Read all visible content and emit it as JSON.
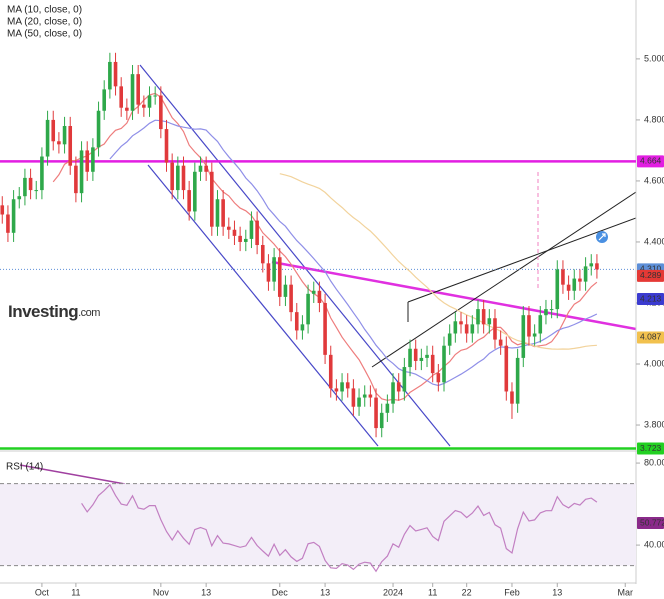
{
  "chart_data": {
    "type": "candlestick",
    "legend": [
      "MA (10, close, 0)",
      "MA (20, close, 0)",
      "MA (50, close, 0)"
    ],
    "ma": [
      {
        "period": 10,
        "color": "#ee7d7d"
      },
      {
        "period": 20,
        "color": "#8f8fe8"
      },
      {
        "period": 50,
        "color": "#f2d39c"
      }
    ],
    "logo": "Investing",
    "logo_suffix": ".com",
    "up_color": "#2ea84a",
    "down_color": "#e0393b",
    "candles": [
      [
        4.52,
        4.55,
        4.46,
        4.49
      ],
      [
        4.49,
        4.52,
        4.4,
        4.43
      ],
      [
        4.43,
        4.57,
        4.4,
        4.54
      ],
      [
        4.54,
        4.58,
        4.51,
        4.55
      ],
      [
        4.55,
        4.64,
        4.52,
        4.61
      ],
      [
        4.61,
        4.64,
        4.54,
        4.57
      ],
      [
        4.57,
        4.6,
        4.54,
        4.57
      ],
      [
        4.57,
        4.71,
        4.54,
        4.68
      ],
      [
        4.68,
        4.83,
        4.65,
        4.8
      ],
      [
        4.8,
        4.83,
        4.7,
        4.73
      ],
      [
        4.73,
        4.76,
        4.69,
        4.72
      ],
      [
        4.72,
        4.81,
        4.69,
        4.78
      ],
      [
        4.78,
        4.81,
        4.62,
        4.65
      ],
      [
        4.65,
        4.68,
        4.53,
        4.56
      ],
      [
        4.56,
        4.73,
        4.53,
        4.7
      ],
      [
        4.7,
        4.73,
        4.6,
        4.63
      ],
      [
        4.63,
        4.74,
        4.6,
        4.71
      ],
      [
        4.71,
        4.86,
        4.68,
        4.83
      ],
      [
        4.83,
        4.93,
        4.8,
        4.9
      ],
      [
        4.9,
        5.02,
        4.87,
        4.99
      ],
      [
        4.99,
        5.02,
        4.88,
        4.91
      ],
      [
        4.91,
        4.94,
        4.81,
        4.84
      ],
      [
        4.84,
        4.87,
        4.8,
        4.83
      ],
      [
        4.83,
        4.98,
        4.8,
        4.95
      ],
      [
        4.95,
        4.98,
        4.82,
        4.85
      ],
      [
        4.85,
        4.88,
        4.81,
        4.84
      ],
      [
        4.84,
        4.91,
        4.81,
        4.88
      ],
      [
        4.88,
        4.91,
        4.85,
        4.88
      ],
      [
        4.88,
        4.91,
        4.74,
        4.77
      ],
      [
        4.77,
        4.8,
        4.63,
        4.66
      ],
      [
        4.66,
        4.69,
        4.54,
        4.57
      ],
      [
        4.57,
        4.68,
        4.54,
        4.65
      ],
      [
        4.65,
        4.68,
        4.54,
        4.57
      ],
      [
        4.57,
        4.6,
        4.47,
        4.5
      ],
      [
        4.5,
        4.66,
        4.47,
        4.63
      ],
      [
        4.63,
        4.68,
        4.6,
        4.65
      ],
      [
        4.65,
        4.68,
        4.6,
        4.63
      ],
      [
        4.63,
        4.66,
        4.42,
        4.45
      ],
      [
        4.45,
        4.57,
        4.42,
        4.54
      ],
      [
        4.54,
        4.57,
        4.42,
        4.45
      ],
      [
        4.45,
        4.48,
        4.41,
        4.44
      ],
      [
        4.44,
        4.47,
        4.39,
        4.42
      ],
      [
        4.42,
        4.45,
        4.37,
        4.4
      ],
      [
        4.4,
        4.44,
        4.37,
        4.41
      ],
      [
        4.41,
        4.5,
        4.38,
        4.47
      ],
      [
        4.47,
        4.5,
        4.36,
        4.39
      ],
      [
        4.39,
        4.42,
        4.3,
        4.33
      ],
      [
        4.33,
        4.36,
        4.24,
        4.27
      ],
      [
        4.27,
        4.38,
        4.24,
        4.35
      ],
      [
        4.35,
        4.38,
        4.19,
        4.22
      ],
      [
        4.22,
        4.29,
        4.19,
        4.26
      ],
      [
        4.26,
        4.29,
        4.14,
        4.17
      ],
      [
        4.17,
        4.2,
        4.08,
        4.11
      ],
      [
        4.11,
        4.16,
        4.08,
        4.13
      ],
      [
        4.13,
        4.26,
        4.1,
        4.23
      ],
      [
        4.23,
        4.27,
        4.2,
        4.24
      ],
      [
        4.24,
        4.27,
        4.17,
        4.2
      ],
      [
        4.2,
        4.23,
        4.0,
        4.03
      ],
      [
        4.03,
        4.06,
        3.89,
        3.92
      ],
      [
        3.92,
        3.95,
        3.88,
        3.91
      ],
      [
        3.91,
        3.97,
        3.88,
        3.94
      ],
      [
        3.94,
        3.97,
        3.89,
        3.92
      ],
      [
        3.92,
        3.95,
        3.83,
        3.86
      ],
      [
        3.86,
        3.92,
        3.83,
        3.89
      ],
      [
        3.89,
        3.93,
        3.86,
        3.9
      ],
      [
        3.9,
        3.93,
        3.86,
        3.89
      ],
      [
        3.89,
        3.92,
        3.76,
        3.79
      ],
      [
        3.79,
        3.87,
        3.76,
        3.84
      ],
      [
        3.84,
        3.9,
        3.81,
        3.87
      ],
      [
        3.87,
        3.97,
        3.84,
        3.94
      ],
      [
        3.94,
        3.97,
        3.88,
        3.91
      ],
      [
        3.91,
        4.02,
        3.88,
        3.99
      ],
      [
        3.99,
        4.08,
        3.96,
        4.05
      ],
      [
        4.05,
        4.08,
        3.98,
        4.01
      ],
      [
        4.01,
        4.05,
        3.98,
        4.02
      ],
      [
        4.02,
        4.06,
        3.99,
        4.03
      ],
      [
        4.03,
        4.06,
        3.94,
        3.97
      ],
      [
        3.97,
        4.0,
        3.91,
        3.94
      ],
      [
        3.94,
        4.09,
        3.91,
        4.06
      ],
      [
        4.06,
        4.13,
        4.03,
        4.1
      ],
      [
        4.1,
        4.17,
        4.07,
        4.14
      ],
      [
        4.14,
        4.17,
        4.1,
        4.13
      ],
      [
        4.13,
        4.16,
        4.07,
        4.1
      ],
      [
        4.1,
        4.16,
        4.07,
        4.13
      ],
      [
        4.13,
        4.21,
        4.1,
        4.18
      ],
      [
        4.18,
        4.21,
        4.1,
        4.13
      ],
      [
        4.13,
        4.18,
        4.1,
        4.15
      ],
      [
        4.15,
        4.18,
        4.05,
        4.08
      ],
      [
        4.08,
        4.11,
        4.03,
        4.06
      ],
      [
        4.06,
        4.09,
        3.88,
        3.91
      ],
      [
        3.91,
        3.94,
        3.82,
        3.87
      ],
      [
        3.87,
        4.05,
        3.84,
        4.02
      ],
      [
        4.02,
        4.19,
        3.99,
        4.16
      ],
      [
        4.16,
        4.19,
        4.06,
        4.09
      ],
      [
        4.09,
        4.13,
        4.06,
        4.1
      ],
      [
        4.1,
        4.19,
        4.07,
        4.16
      ],
      [
        4.16,
        4.21,
        4.13,
        4.18
      ],
      [
        4.18,
        4.21,
        4.15,
        4.18
      ],
      [
        4.18,
        4.34,
        4.15,
        4.31
      ],
      [
        4.31,
        4.34,
        4.23,
        4.26
      ],
      [
        4.26,
        4.29,
        4.21,
        4.24
      ],
      [
        4.24,
        4.31,
        4.21,
        4.28
      ],
      [
        4.28,
        4.31,
        4.24,
        4.27
      ],
      [
        4.27,
        4.35,
        4.24,
        4.32
      ],
      [
        4.32,
        4.36,
        4.29,
        4.33
      ],
      [
        4.33,
        4.36,
        4.28,
        4.31
      ]
    ],
    "xlim": [
      -0.4,
      111.9
    ],
    "xticks": [
      {
        "value": 7,
        "label": "Oct"
      },
      {
        "value": 13,
        "label": "11"
      },
      {
        "value": 28,
        "label": "Nov"
      },
      {
        "value": 36,
        "label": "13"
      },
      {
        "value": 49,
        "label": "Dec"
      },
      {
        "value": 57,
        "label": "13"
      },
      {
        "value": 69,
        "label": "2024"
      },
      {
        "value": 76,
        "label": "11"
      },
      {
        "value": 82,
        "label": "22"
      },
      {
        "value": 90,
        "label": "Feb"
      },
      {
        "value": 98,
        "label": "13"
      },
      {
        "value": 110,
        "label": "Mar"
      }
    ],
    "ylim": [
      3.728,
      5.193
    ],
    "yticks": [
      {
        "value": 3.8,
        "label": "3.800"
      },
      {
        "value": 4,
        "label": "4.000"
      },
      {
        "value": 4.2,
        "label": "4.200"
      },
      {
        "value": 4.4,
        "label": "4.400"
      },
      {
        "value": 4.6,
        "label": "4.600"
      },
      {
        "value": 4.8,
        "label": "4.800"
      },
      {
        "value": 5,
        "label": "5.000"
      }
    ],
    "grid": false,
    "hlines": [
      {
        "value": 4.664,
        "color": "#e21ee2"
      },
      {
        "value": 3.723,
        "color": "#22d022"
      }
    ],
    "price_labels": [
      {
        "value": 4.664,
        "color": "#e21ee2"
      },
      {
        "value": 4.31,
        "label": "4.310",
        "color": "#5d8fd8"
      },
      {
        "value": 4.289,
        "color": "#e53935"
      },
      {
        "value": 4.213,
        "color": "#3b3bd0"
      },
      {
        "value": 4.087,
        "color": "#f2c14e"
      },
      {
        "value": 3.723,
        "color": "#22d022"
      }
    ],
    "rsi": {
      "label": "RSI (14)",
      "period": 14,
      "color": "#c27fc2",
      "ylim": [
        22,
        85.4
      ],
      "yticks": [
        {
          "value": 80,
          "label": "80.0000"
        },
        {
          "value": 40,
          "label": "40.0000"
        }
      ],
      "bands": [
        70,
        30
      ],
      "last": {
        "value": 50.772,
        "label": "50.7720"
      },
      "last_color": "#8a2a8a"
    }
  }
}
